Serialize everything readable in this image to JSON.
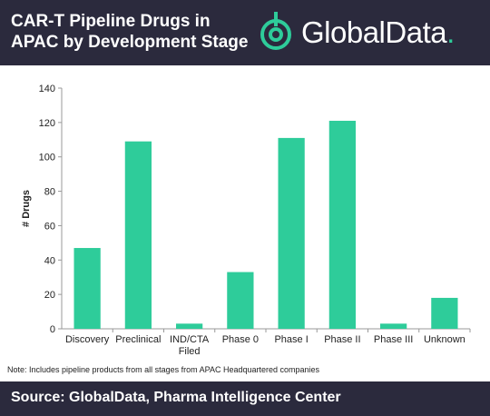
{
  "header": {
    "title_line1": "CAR-T Pipeline Drugs in",
    "title_line2": "APAC by Development Stage",
    "logo_text": "GlobalData",
    "logo_dot": "."
  },
  "note": "Note: Includes pipeline products from all stages from APAC Headquartered companies",
  "footer": {
    "source": "Source: GlobalData, Pharma Intelligence Center"
  },
  "colors": {
    "header_bg": "#2b2a3d",
    "bar": "#2ecc9a",
    "accent": "#2ecc9a"
  },
  "chart_data": {
    "type": "bar",
    "title": "",
    "xlabel": "",
    "ylabel": "# Drugs",
    "categories": [
      [
        "Discovery"
      ],
      [
        "Preclinical"
      ],
      [
        "IND/CTA",
        "Filed"
      ],
      [
        "Phase 0"
      ],
      [
        "Phase I"
      ],
      [
        "Phase II"
      ],
      [
        "Phase III"
      ],
      [
        "Unknown"
      ]
    ],
    "values": [
      47,
      109,
      3,
      33,
      111,
      121,
      3,
      18
    ],
    "ylim": [
      0,
      140
    ],
    "yticks": [
      0,
      20,
      40,
      60,
      80,
      100,
      120,
      140
    ],
    "grid": false,
    "legend": "none"
  }
}
